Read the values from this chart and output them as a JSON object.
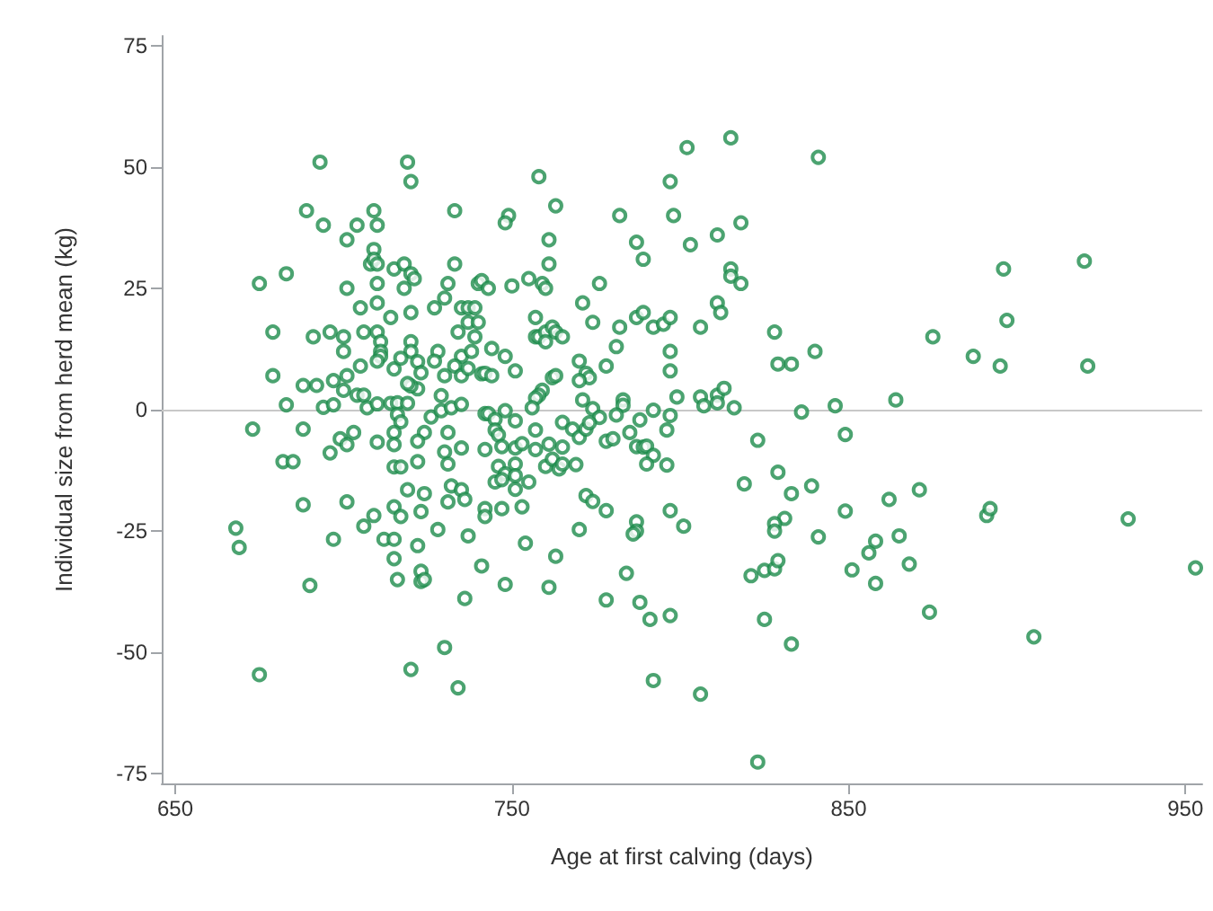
{
  "chart_data": {
    "type": "scatter",
    "xlabel": "Age at first calving (days)",
    "ylabel": "Individual size from herd mean (kg)",
    "xlim": [
      646,
      955
    ],
    "ylim": [
      -77,
      77
    ],
    "xticks": [
      650,
      750,
      850,
      950
    ],
    "yticks": [
      -75,
      -50,
      -25,
      0,
      25,
      50,
      75
    ],
    "grid": false,
    "marker": "circle",
    "ref_lines": [
      {
        "axis": "y",
        "value": 0,
        "color": "#c8c8c8"
      }
    ],
    "series": [
      {
        "color": "#1e8c4c",
        "x": [
          693,
          719,
          720,
          689,
          694,
          709,
          704,
          701,
          710,
          733,
          709,
          708,
          709,
          710,
          715,
          718,
          720,
          721,
          733,
          675,
          683,
          701,
          710,
          718,
          731,
          740,
          720,
          705,
          710,
          714,
          727,
          730,
          735,
          737,
          739,
          679,
          691,
          696,
          700,
          706,
          710,
          734,
          737,
          740,
          739,
          711,
          711,
          711,
          720,
          720,
          728,
          735,
          738,
          700,
          679,
          701,
          705,
          710,
          715,
          717,
          722,
          723,
          730,
          727,
          733,
          735,
          737,
          741,
          688,
          692,
          697,
          700,
          704,
          706,
          683,
          694,
          697,
          707,
          710,
          714,
          716,
          719,
          722,
          720,
          719,
          716,
          717,
          726,
          729,
          729,
          732,
          735,
          742,
          815,
          802,
          841,
          758,
          797,
          763,
          749,
          748,
          782,
          798,
          818,
          811,
          803,
          761,
          787,
          789,
          761,
          815,
          815,
          818,
          741,
          743,
          750,
          755,
          759,
          760,
          776,
          771,
          811,
          812,
          757,
          774,
          787,
          789,
          792,
          795,
          797,
          806,
          828,
          782,
          757,
          758,
          760,
          762,
          763,
          765,
          760,
          744,
          748,
          781,
          797,
          840,
          770,
          829,
          833,
          778,
          742,
          744,
          751,
          772,
          773,
          770,
          762,
          763,
          797,
          759,
          758,
          757,
          771,
          783,
          783,
          799,
          806,
          811,
          813,
          811,
          807,
          816,
          836,
          846,
          756,
          743,
          748,
          774,
          776,
          781,
          788,
          792,
          797,
          765,
          751,
          920,
          896,
          897,
          875,
          887,
          895,
          921,
          864,
          673,
          688,
          682,
          685,
          699,
          701,
          703,
          696,
          710,
          715,
          715,
          724,
          722,
          731,
          730,
          731,
          735,
          715,
          717,
          722,
          742,
          688,
          701,
          719,
          724,
          732,
          735,
          736,
          731,
          715,
          717,
          723,
          709,
          706,
          742,
          742,
          668,
          669,
          697,
          712,
          715,
          728,
          737,
          722,
          715,
          741,
          690,
          716,
          723,
          723,
          724,
          736,
          730,
          720,
          675,
          734,
          745,
          745,
          746,
          747,
          751,
          753,
          757,
          757,
          761,
          765,
          768,
          770,
          772,
          773,
          778,
          780,
          785,
          796,
          787,
          789,
          790,
          792,
          790,
          796,
          746,
          748,
          751,
          751,
          745,
          747,
          755,
          760,
          762,
          764,
          765,
          769,
          751,
          747,
          753,
          772,
          774,
          778,
          787,
          787,
          786,
          797,
          801,
          770,
          754,
          763,
          748,
          761,
          784,
          778,
          788,
          791,
          797,
          792,
          806,
          823,
          823,
          819,
          829,
          833,
          839,
          831,
          828,
          828,
          841,
          821,
          825,
          828,
          829,
          825,
          833,
          849,
          849,
          862,
          871,
          891,
          892,
          933,
          858,
          856,
          851,
          865,
          868,
          858,
          874,
          905,
          953
        ],
        "values": [
          51,
          51,
          47,
          41,
          38,
          41,
          38,
          35,
          38,
          41,
          33,
          30,
          31,
          30,
          29,
          30,
          28,
          27,
          30,
          26,
          28,
          25,
          26,
          25,
          26,
          26,
          20,
          21,
          22,
          19,
          21,
          23,
          21,
          21,
          21,
          16,
          15,
          16,
          15,
          16,
          16,
          16,
          18,
          18,
          15,
          14,
          12,
          11,
          14,
          12,
          12,
          11,
          12,
          12,
          7,
          7,
          9,
          10,
          8.4,
          10.6,
          9.9,
          7.6,
          7,
          10,
          9,
          7,
          8.5,
          7.4,
          5,
          5,
          6,
          4,
          3,
          3,
          1,
          0.5,
          1,
          0.4,
          1.2,
          1.3,
          1.4,
          1.3,
          4.3,
          4.9,
          5.4,
          -1,
          -2.5,
          -1.5,
          2.9,
          -0.2,
          0.4,
          1.1,
          -0.8,
          56,
          54,
          52,
          48,
          47,
          42,
          40,
          38.5,
          40,
          40,
          38.5,
          36,
          34,
          35,
          34.5,
          31,
          30,
          29,
          27.5,
          26,
          26.6,
          25,
          25.5,
          27,
          26,
          25,
          26,
          22,
          22,
          20,
          19,
          18,
          19,
          20,
          17,
          17.6,
          19,
          17,
          16,
          17,
          15,
          15,
          16,
          17,
          16,
          15,
          14,
          12.6,
          11,
          13,
          12,
          12,
          10,
          9.4,
          9.4,
          9,
          7.5,
          7,
          8,
          7.5,
          6.6,
          6,
          6.6,
          7,
          8,
          4,
          3,
          2.4,
          2,
          2,
          0.9,
          2.6,
          2.6,
          3,
          4.4,
          1.4,
          0.8,
          0.4,
          -0.5,
          0.8,
          0.4,
          -0.8,
          -0.2,
          0.2,
          -1.6,
          -1.1,
          -2.1,
          -0.1,
          -1.2,
          -2.6,
          -2.3,
          30.6,
          29,
          18.4,
          15,
          11,
          9,
          9,
          2,
          -4,
          -4,
          -10.7,
          -10.7,
          -6,
          -7.2,
          -4.7,
          -8.9,
          -6.7,
          -4.7,
          -7.2,
          -4.7,
          -6.5,
          -4.7,
          -8.7,
          -11.2,
          -7.9,
          -11.8,
          -11.8,
          -10.7,
          -8.2,
          -19.6,
          -19,
          -16.5,
          -17.3,
          -15.7,
          -16.5,
          -18.5,
          -19,
          -20,
          -22,
          -21,
          -21.8,
          -24,
          -20.4,
          -22,
          -24.4,
          -28.4,
          -26.7,
          -26.7,
          -26.7,
          -24.7,
          -26,
          -28,
          -30.7,
          -32.2,
          -36.2,
          -35,
          -33.3,
          -35.4,
          -35,
          -38.9,
          -49,
          -53.5,
          -54.6,
          -57.3,
          -2,
          -4.2,
          -5.2,
          -7.6,
          -7.9,
          -7,
          -4.2,
          -8.2,
          -7.1,
          -7.7,
          -4,
          -5.7,
          -4,
          -2.7,
          -6.5,
          -6,
          -4.7,
          -4.2,
          -7.6,
          -7.7,
          -7.5,
          -9.4,
          -11.2,
          -11.4,
          -11.7,
          -13.2,
          -11.2,
          -13.6,
          -14.9,
          -14.4,
          -14.9,
          -11.7,
          -10.2,
          -12.2,
          -11.2,
          -11.3,
          -16.4,
          -20.4,
          -20,
          -17.7,
          -18.9,
          -20.8,
          -23.1,
          -25,
          -25.6,
          -20.8,
          -24,
          -24.7,
          -27.5,
          -30.2,
          -36,
          -36.6,
          -33.7,
          -39.2,
          -39.7,
          -43.2,
          -42.4,
          -55.8,
          -58.6,
          -72.6,
          -6.3,
          -15.3,
          -12.9,
          -17.3,
          -15.7,
          -22.4,
          -23.5,
          -25,
          -26.2,
          -34.2,
          -33.1,
          -32.8,
          -31.1,
          -43.2,
          -48.3,
          -5.1,
          -20.9,
          -18.5,
          -16.5,
          -21.8,
          -20.4,
          -22.5,
          -27.1,
          -29.5,
          -33,
          -26,
          -31.8,
          -35.8,
          -41.7,
          -46.8,
          -32.6
        ]
      }
    ]
  }
}
